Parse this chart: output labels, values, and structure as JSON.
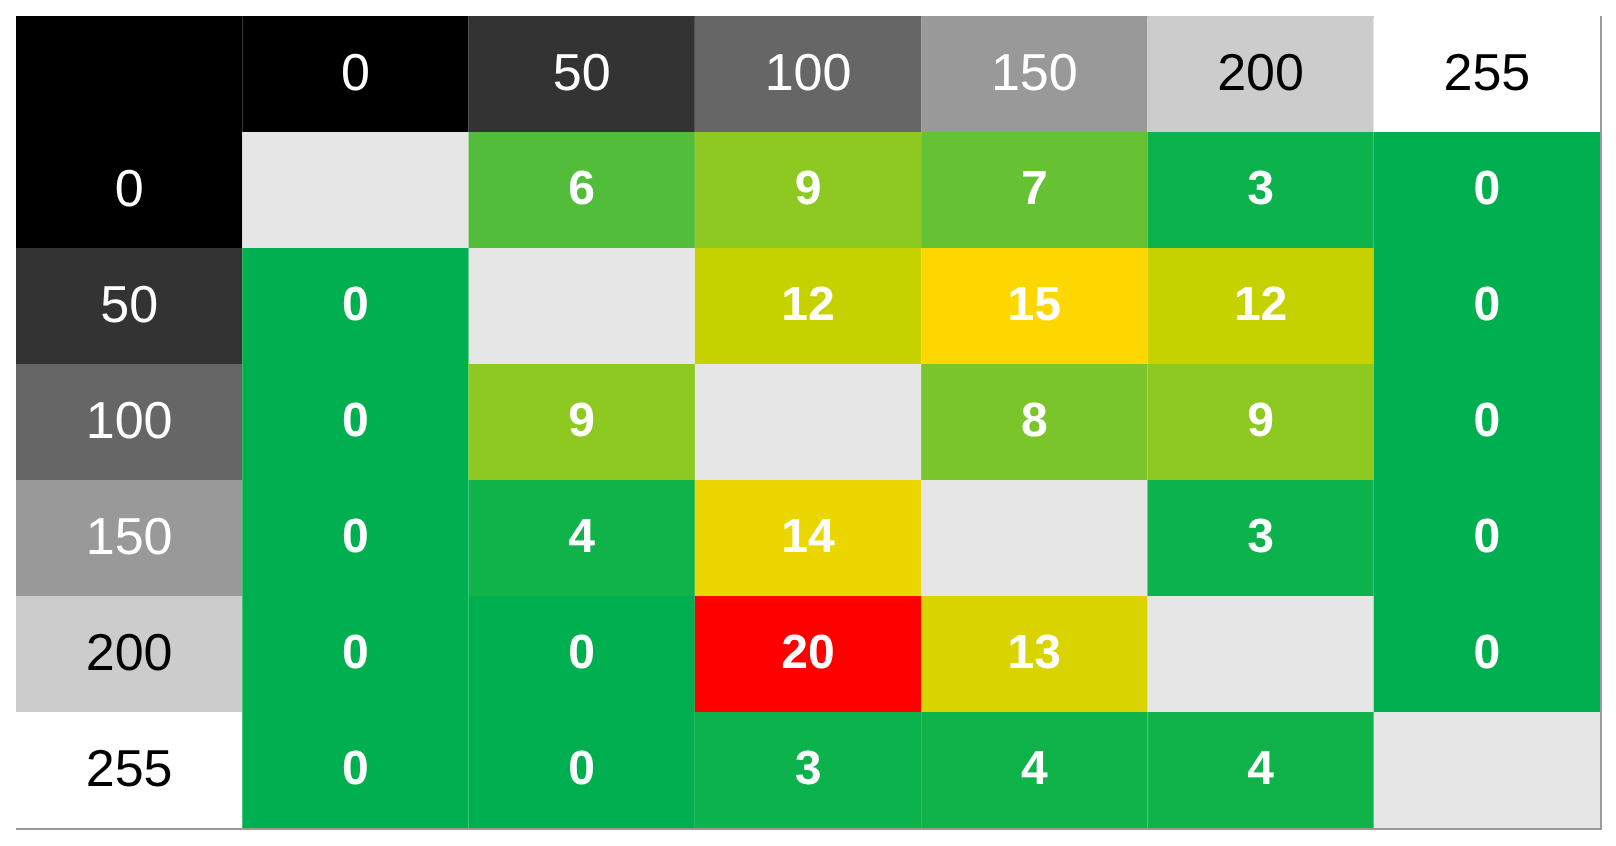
{
  "chart_data": {
    "type": "heatmap",
    "categories": [
      "0",
      "50",
      "100",
      "150",
      "200",
      "255"
    ],
    "y_categories": [
      "0",
      "50",
      "100",
      "150",
      "200",
      "255"
    ],
    "cells": [
      [
        null,
        6,
        9,
        7,
        3,
        0
      ],
      [
        0,
        null,
        12,
        15,
        12,
        0
      ],
      [
        0,
        9,
        null,
        8,
        9,
        0
      ],
      [
        0,
        4,
        14,
        null,
        3,
        0
      ],
      [
        0,
        0,
        20,
        13,
        null,
        0
      ],
      [
        0,
        0,
        3,
        4,
        4,
        null
      ]
    ],
    "data_labels": true
  }
}
